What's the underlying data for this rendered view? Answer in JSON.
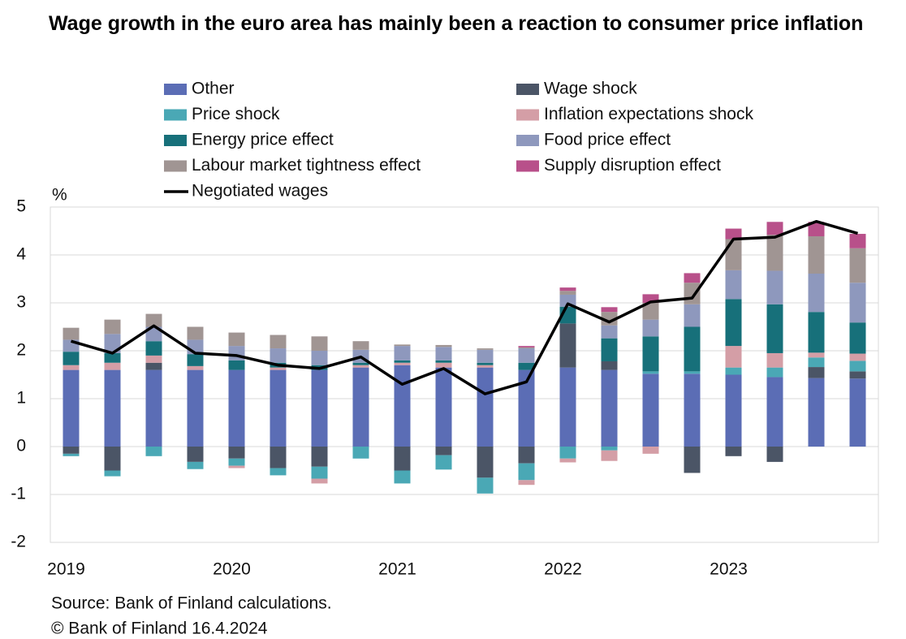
{
  "chart_data": {
    "type": "bar",
    "stacked": true,
    "title": "Wage growth in the euro area has mainly been a reaction to consumer price inflation",
    "y_unit": "%",
    "source": [
      "Source: Bank of Finland calculations.",
      "© Bank of Finland 16.4.2024"
    ],
    "categories": [
      "2019",
      null,
      null,
      null,
      "2020",
      null,
      null,
      null,
      "2021",
      null,
      null,
      null,
      "2022",
      null,
      null,
      null,
      "2023",
      null,
      null,
      null
    ],
    "ylim": [
      -2,
      5
    ],
    "yticks": [
      -2,
      -1,
      0,
      1,
      2,
      3,
      4,
      5
    ],
    "grid": true,
    "series": [
      {
        "name": "Other",
        "color": "#5b6db5",
        "values": [
          1.6,
          1.6,
          1.6,
          1.6,
          1.6,
          1.6,
          1.6,
          1.65,
          1.7,
          1.65,
          1.65,
          1.6,
          1.65,
          1.6,
          1.52,
          1.52,
          1.5,
          1.45,
          1.43,
          1.42
        ]
      },
      {
        "name": "Wage shock",
        "color": "#4b5566",
        "values": [
          -0.15,
          -0.5,
          0.15,
          -0.32,
          -0.25,
          -0.45,
          -0.42,
          0,
          -0.5,
          -0.18,
          -0.65,
          -0.35,
          0.92,
          0.18,
          0,
          -0.55,
          -0.2,
          -0.32,
          0.23,
          0.15
        ]
      },
      {
        "name": "Price shock",
        "color": "#4aa8b5",
        "values": [
          -0.05,
          -0.12,
          -0.2,
          -0.15,
          -0.15,
          -0.15,
          -0.25,
          -0.25,
          -0.27,
          -0.3,
          -0.33,
          -0.35,
          -0.25,
          -0.08,
          0.05,
          0.05,
          0.15,
          0.2,
          0.2,
          0.22
        ]
      },
      {
        "name": "Inflation expectations shock",
        "color": "#d49ea6",
        "values": [
          0.1,
          0.15,
          0.15,
          0.08,
          -0.05,
          0.05,
          -0.1,
          0.05,
          0.05,
          0.1,
          0.05,
          -0.1,
          -0.08,
          -0.22,
          -0.15,
          0,
          0.45,
          0.3,
          0.1,
          0.15
        ]
      },
      {
        "name": "Energy price effect",
        "color": "#17707a",
        "values": [
          0.28,
          0.2,
          0.3,
          0.25,
          0.2,
          0.1,
          0.1,
          0.05,
          0.05,
          0.05,
          0.05,
          0.15,
          0.35,
          0.48,
          0.73,
          0.93,
          0.98,
          1.02,
          0.85,
          0.65
        ]
      },
      {
        "name": "Food price effect",
        "color": "#8e98bd",
        "values": [
          0.25,
          0.4,
          0.3,
          0.3,
          0.3,
          0.3,
          0.3,
          0.27,
          0.3,
          0.28,
          0.27,
          0.3,
          0.25,
          0.27,
          0.35,
          0.47,
          0.6,
          0.7,
          0.8,
          0.83
        ]
      },
      {
        "name": "Labour market tightness effect",
        "color": "#a09593",
        "values": [
          0.25,
          0.3,
          0.27,
          0.27,
          0.28,
          0.28,
          0.3,
          0.18,
          0.03,
          0.04,
          0.03,
          0.02,
          0.08,
          0.28,
          0.35,
          0.45,
          0.65,
          0.75,
          0.78,
          0.72
        ]
      },
      {
        "name": "Supply disruption effect",
        "color": "#b8508a",
        "values": [
          0,
          0,
          0,
          0,
          0,
          0,
          0,
          0,
          0,
          0,
          0,
          0.03,
          0.07,
          0.1,
          0.18,
          0.2,
          0.22,
          0.27,
          0.3,
          0.3
        ]
      },
      {
        "name": "Negotiated wages",
        "type": "line",
        "color": "#000000",
        "values": [
          2.2,
          1.95,
          2.52,
          1.95,
          1.9,
          1.7,
          1.63,
          1.87,
          1.3,
          1.63,
          1.1,
          1.35,
          2.98,
          2.6,
          3.02,
          3.1,
          4.33,
          4.37,
          4.7,
          4.45
        ]
      }
    ]
  }
}
